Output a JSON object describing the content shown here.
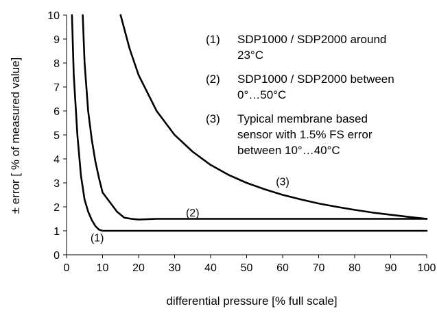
{
  "chart_data": {
    "type": "line",
    "xlabel": "differential pressure [% full scale]",
    "ylabel": "± error [ % of measured value]",
    "xlim": [
      0,
      100
    ],
    "ylim": [
      0,
      10
    ],
    "x_ticks": [
      "0",
      "10",
      "20",
      "30",
      "40",
      "50",
      "60",
      "70",
      "80",
      "90",
      "100"
    ],
    "y_ticks": [
      "0",
      "1",
      "2",
      "3",
      "4",
      "5",
      "6",
      "7",
      "8",
      "9",
      "10"
    ],
    "grid": false,
    "legend_position": "top-right",
    "legend": [
      {
        "key": "(1)",
        "lines": [
          "SDP1000 / SDP2000 around",
          "23°C"
        ]
      },
      {
        "key": "(2)",
        "lines": [
          "SDP1000 / SDP2000 between",
          "0°…50°C"
        ]
      },
      {
        "key": "(3)",
        "lines": [
          "Typical membrane based",
          "sensor with 1.5% FS error",
          "between 10°…40°C"
        ]
      }
    ],
    "series": [
      {
        "label": "(1)",
        "label_at": [
          8.5,
          0.7
        ],
        "points": [
          [
            1.5,
            10
          ],
          [
            2,
            7.5
          ],
          [
            3,
            5
          ],
          [
            4,
            3.3
          ],
          [
            5,
            2.3
          ],
          [
            6,
            1.8
          ],
          [
            7,
            1.45
          ],
          [
            8,
            1.2
          ],
          [
            9,
            1.05
          ],
          [
            10,
            1.0
          ],
          [
            12,
            1.0
          ],
          [
            20,
            1.0
          ],
          [
            40,
            1.0
          ],
          [
            60,
            1.0
          ],
          [
            80,
            1.0
          ],
          [
            100,
            1.0
          ]
        ]
      },
      {
        "label": "(2)",
        "label_at": [
          35,
          1.75
        ],
        "points": [
          [
            4.5,
            10
          ],
          [
            5,
            8
          ],
          [
            6,
            6
          ],
          [
            7,
            4.8
          ],
          [
            8,
            3.9
          ],
          [
            9,
            3.2
          ],
          [
            10,
            2.6
          ],
          [
            12,
            2.2
          ],
          [
            14,
            1.8
          ],
          [
            16,
            1.55
          ],
          [
            18,
            1.5
          ],
          [
            20,
            1.47
          ],
          [
            25,
            1.5
          ],
          [
            40,
            1.5
          ],
          [
            60,
            1.5
          ],
          [
            80,
            1.5
          ],
          [
            100,
            1.5
          ]
        ]
      },
      {
        "label": "(3)",
        "label_at": [
          60,
          3.05
        ],
        "points": [
          [
            15,
            10
          ],
          [
            17.5,
            8.6
          ],
          [
            20,
            7.5
          ],
          [
            25,
            6.0
          ],
          [
            30,
            5.0
          ],
          [
            35,
            4.3
          ],
          [
            40,
            3.75
          ],
          [
            45,
            3.33
          ],
          [
            50,
            3.0
          ],
          [
            55,
            2.73
          ],
          [
            60,
            2.5
          ],
          [
            65,
            2.31
          ],
          [
            70,
            2.14
          ],
          [
            75,
            2.0
          ],
          [
            80,
            1.875
          ],
          [
            85,
            1.76
          ],
          [
            90,
            1.67
          ],
          [
            95,
            1.58
          ],
          [
            100,
            1.5
          ]
        ]
      }
    ]
  }
}
